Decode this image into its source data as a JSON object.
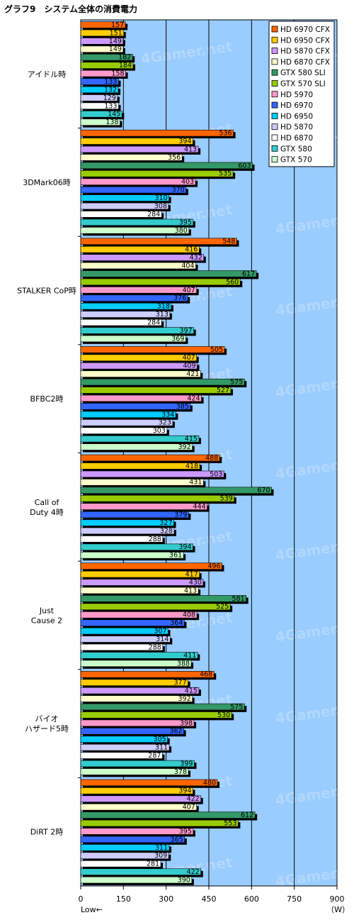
{
  "chart_data": {
    "type": "bar",
    "orientation": "horizontal",
    "title": "グラフ9　システム全体の消費電力",
    "xlim": [
      0,
      900
    ],
    "xticks": [
      0,
      150,
      300,
      450,
      600,
      750,
      900
    ],
    "xlabel_left": "Low←",
    "xlabel_right": "（W）",
    "grid": true,
    "legend_position": "top-right",
    "watermark": "4Gamer.net",
    "categories": [
      "アイドル時",
      "3DMark06時",
      "STALKER CoP時",
      "BFBC2時",
      "Call of Duty 4時",
      "Just Cause 2",
      "バイオハザード5時",
      "DiRT 2時"
    ],
    "category_lines": [
      [
        "アイドル時"
      ],
      [
        "3DMark06時"
      ],
      [
        "STALKER CoP時"
      ],
      [
        "BFBC2時"
      ],
      [
        "Call of",
        "Duty 4時"
      ],
      [
        "Just",
        "Cause 2"
      ],
      [
        "バイオ",
        "ハザード5時"
      ],
      [
        "DiRT 2時"
      ]
    ],
    "series": [
      {
        "name": "HD 6970 CFX",
        "color": "#ff6600",
        "values": [
          157,
          536,
          548,
          505,
          488,
          496,
          468,
          480
        ]
      },
      {
        "name": "HD 6950 CFX",
        "color": "#ffcc00",
        "values": [
          151,
          394,
          416,
          407,
          418,
          417,
          377,
          394
        ]
      },
      {
        "name": "HD 5870 CFX",
        "color": "#cc99ff",
        "values": [
          149,
          413,
          432,
          409,
          503,
          430,
          415,
          422
        ]
      },
      {
        "name": "HD 6870 CFX",
        "color": "#ffffcc",
        "values": [
          149,
          356,
          404,
          421,
          431,
          413,
          392,
          407
        ]
      },
      {
        "name": "GTX 580 SLI",
        "color": "#339966",
        "values": [
          182,
          603,
          617,
          575,
          670,
          581,
          575,
          612
        ]
      },
      {
        "name": "GTX 570 SLI",
        "color": "#99cc00",
        "values": [
          184,
          535,
          560,
          527,
          539,
          525,
          530,
          553
        ]
      },
      {
        "name": "HD 5970",
        "color": "#ff99cc",
        "values": [
          158,
          403,
          407,
          424,
          444,
          408,
          398,
          395
        ]
      },
      {
        "name": "HD 6970",
        "color": "#3366ff",
        "values": [
          133,
          370,
          376,
          385,
          379,
          364,
          362,
          365
        ]
      },
      {
        "name": "HD 6950",
        "color": "#00ccff",
        "values": [
          132,
          310,
          318,
          334,
          327,
          307,
          305,
          311
        ]
      },
      {
        "name": "HD 5870",
        "color": "#ccccff",
        "values": [
          129,
          308,
          313,
          323,
          328,
          314,
          311,
          309
        ]
      },
      {
        "name": "HD 6870",
        "color": "#ffffff",
        "values": [
          133,
          284,
          284,
          303,
          288,
          288,
          287,
          281
        ]
      },
      {
        "name": "GTX 580",
        "color": "#33cccc",
        "values": [
          145,
          395,
          397,
          415,
          394,
          411,
          399,
          422
        ]
      },
      {
        "name": "GTX 570",
        "color": "#ccffcc",
        "values": [
          138,
          380,
          369,
          392,
          361,
          388,
          378,
          390
        ]
      }
    ]
  }
}
